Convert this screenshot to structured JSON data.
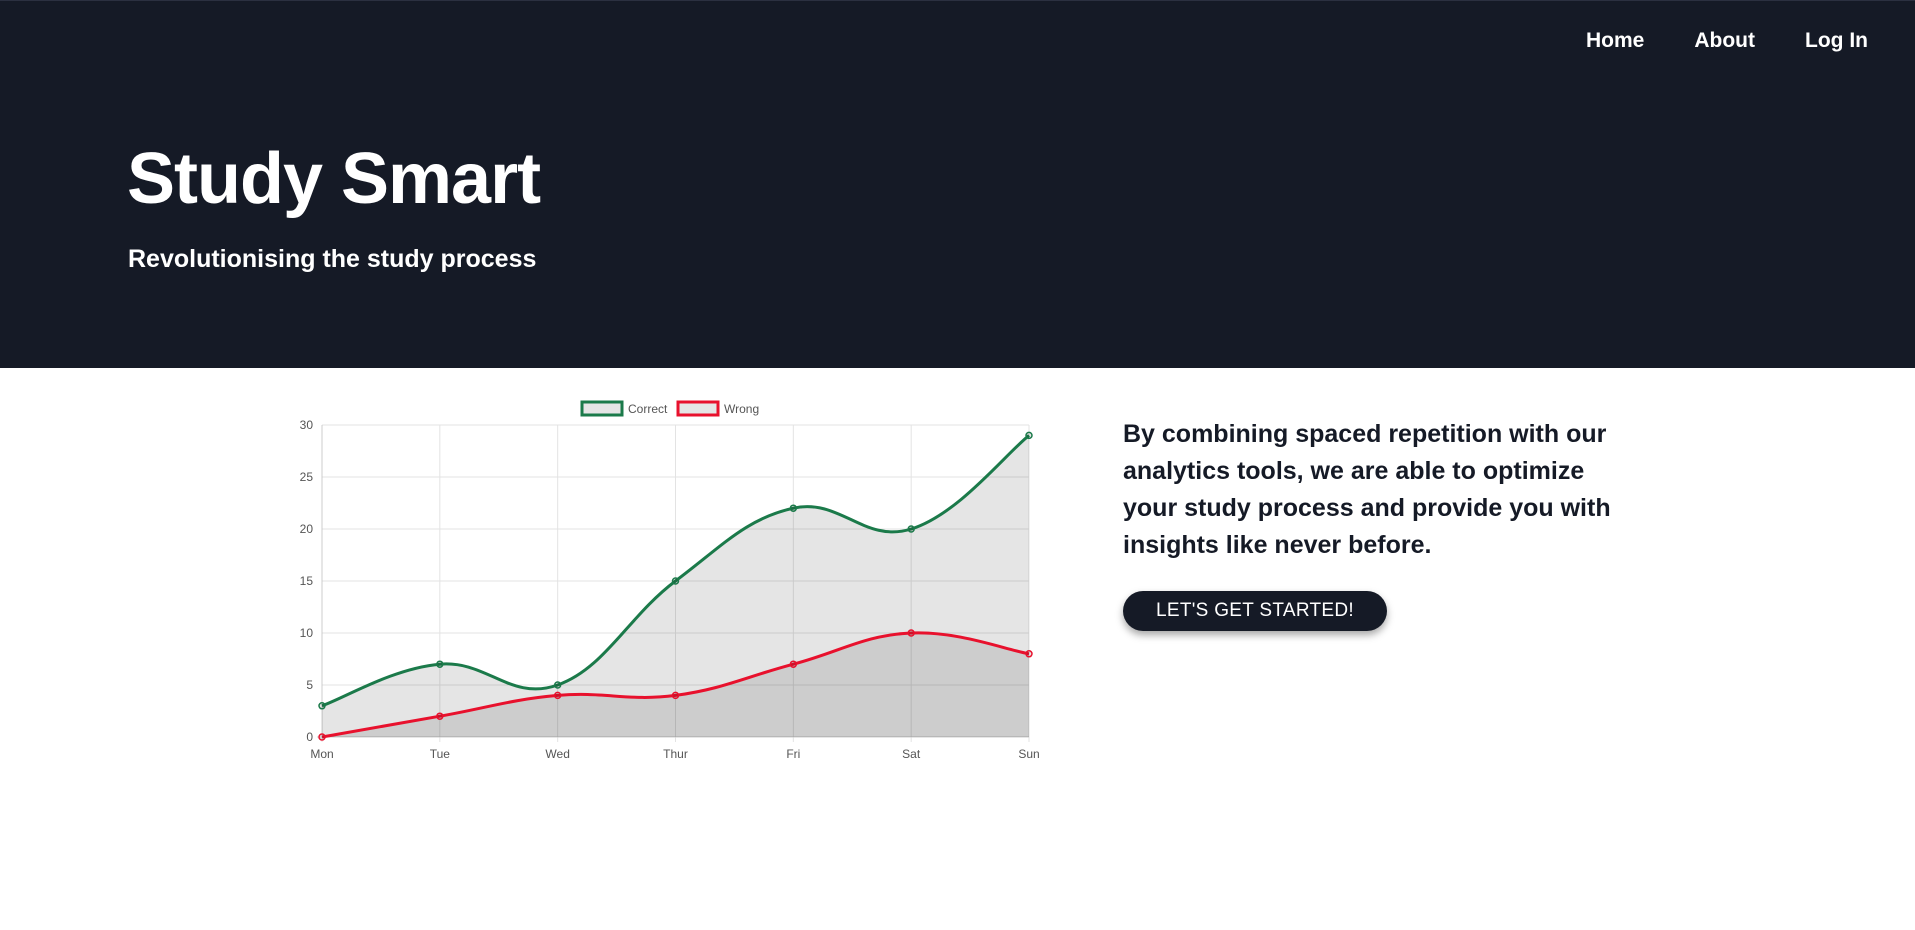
{
  "nav": {
    "items": [
      {
        "label": "Home"
      },
      {
        "label": "About"
      },
      {
        "label": "Log In"
      }
    ]
  },
  "hero": {
    "title": "Study Smart",
    "subtitle": "Revolutionising the study process"
  },
  "content": {
    "description": "By combining spaced repetition with our analytics tools, we are able to optimize your study process and provide you with insights like never before.",
    "cta_label": "LET'S GET STARTED!"
  },
  "colors": {
    "hero_bg": "#151a26",
    "correct": "#1b7a4a",
    "wrong": "#e8112d",
    "fill": "rgba(0,0,0,0.1)"
  },
  "chart_data": {
    "type": "line",
    "categories": [
      "Mon",
      "Tue",
      "Wed",
      "Thur",
      "Fri",
      "Sat",
      "Sun"
    ],
    "series": [
      {
        "name": "Correct",
        "values": [
          3,
          7,
          5,
          15,
          22,
          20,
          29
        ],
        "color": "#1b7a4a"
      },
      {
        "name": "Wrong",
        "values": [
          0,
          2,
          4,
          4,
          7,
          10,
          8
        ],
        "color": "#e8112d"
      }
    ],
    "ylim": [
      0,
      30
    ],
    "yticks": [
      0,
      5,
      10,
      15,
      20,
      25,
      30
    ],
    "grid": true,
    "fill": true,
    "legend": "top-center",
    "title": "",
    "xlabel": "",
    "ylabel": ""
  }
}
